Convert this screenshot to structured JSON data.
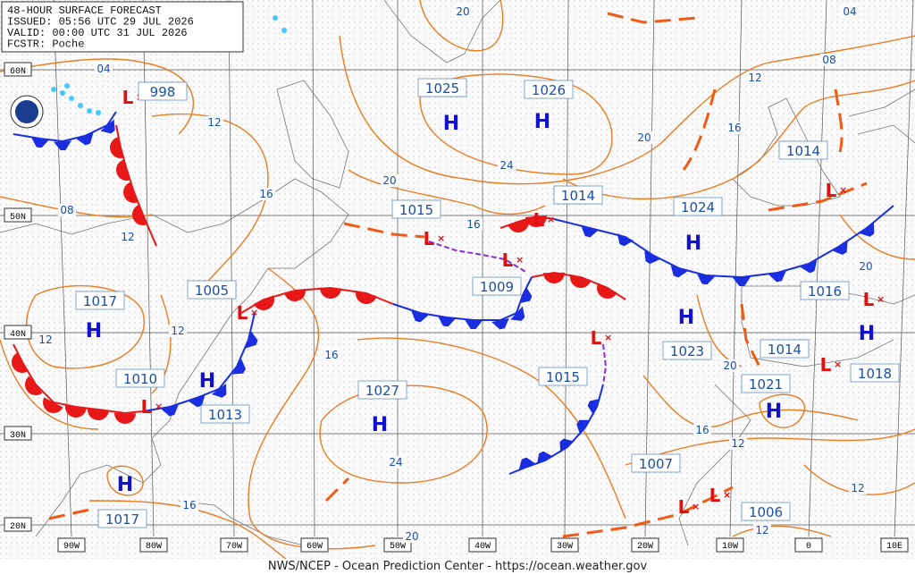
{
  "header": {
    "lines": [
      "48-HOUR SURFACE FORECAST",
      "ISSUED: 05:56 UTC 29 JUL 2026",
      "VALID:  00:00 UTC 31 JUL 2026",
      "FCSTR:  Poche"
    ]
  },
  "lat_labels": [
    "60N",
    "50N",
    "40N",
    "30N",
    "20N"
  ],
  "lon_labels": [
    "90W",
    "80W",
    "70W",
    "60W",
    "50W",
    "40W",
    "30W",
    "20W",
    "10W",
    "0",
    "10E"
  ],
  "centers": [
    {
      "symbol": "L",
      "pressure": 998
    },
    {
      "symbol": "H",
      "pressure": 1025
    },
    {
      "symbol": "H",
      "pressure": 1026
    },
    {
      "symbol": "L",
      "pressure": 1015
    },
    {
      "symbol": "L",
      "pressure": 1014
    },
    {
      "symbol": "H",
      "pressure": 1024
    },
    {
      "symbol": "L",
      "pressure": 1014
    },
    {
      "symbol": "L",
      "pressure": 1009
    },
    {
      "symbol": "L",
      "pressure": 1005
    },
    {
      "symbol": "H",
      "pressure": 1017
    },
    {
      "symbol": "H",
      "pressure": 1023
    },
    {
      "symbol": "L",
      "pressure": 1016
    },
    {
      "symbol": "H",
      "pressure": 1018
    },
    {
      "symbol": "L",
      "pressure": 1014
    },
    {
      "symbol": "H",
      "pressure": 1021
    },
    {
      "symbol": "L",
      "pressure": 1010
    },
    {
      "symbol": "H",
      "pressure": 1013
    },
    {
      "symbol": "H",
      "pressure": 1027
    },
    {
      "symbol": "L",
      "pressure": 1015
    },
    {
      "symbol": "H",
      "pressure": 1017
    },
    {
      "symbol": "L",
      "pressure": 1007
    },
    {
      "symbol": "L",
      "pressure": 1006
    }
  ],
  "isobar_labels": [
    "20",
    "04",
    "04",
    "08",
    "12",
    "12",
    "16",
    "20",
    "24",
    "20",
    "16",
    "08",
    "12",
    "16",
    "12",
    "12",
    "16",
    "20",
    "20",
    "16",
    "12",
    "16",
    "24",
    "20",
    "12",
    "12"
  ],
  "footer": "NWS/NCEP - Ocean Prediction Center - https://ocean.weather.gov"
}
